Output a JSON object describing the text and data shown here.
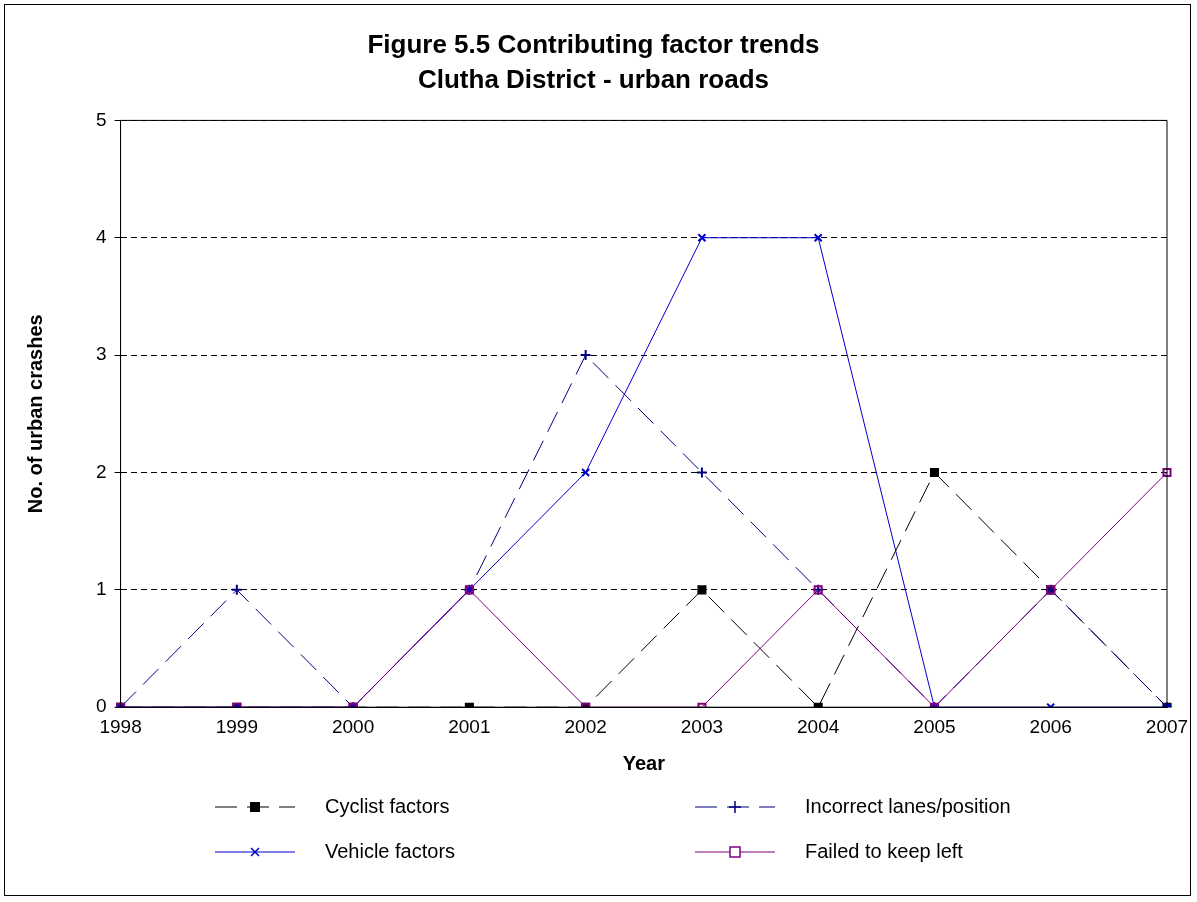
{
  "chart_data": {
    "type": "line",
    "title": "Figure 5.5 Contributing factor trends",
    "subtitle": "Clutha District - urban roads",
    "xlabel": "Year",
    "ylabel": "No. of urban crashes",
    "categories": [
      "1998",
      "1999",
      "2000",
      "2001",
      "2002",
      "2003",
      "2004",
      "2005",
      "2006",
      "2007"
    ],
    "series": [
      {
        "name": "Cyclist factors",
        "color": "#000000",
        "marker": "square",
        "line_style": "dashed",
        "values": [
          0,
          0,
          0,
          0,
          0,
          1,
          0,
          2,
          1,
          0
        ]
      },
      {
        "name": "Incorrect lanes/position",
        "color": "#000080",
        "marker": "cross",
        "line_style": "dashed",
        "values": [
          0,
          1,
          0,
          1,
          3,
          2,
          1,
          0,
          1,
          0
        ]
      },
      {
        "name": "Vehicle factors",
        "color": "#0000cc",
        "marker": "x",
        "line_style": "solid",
        "values": [
          0,
          0,
          0,
          1,
          2,
          4,
          4,
          0,
          0,
          0
        ]
      },
      {
        "name": "Failed to keep left",
        "color": "#800080",
        "marker": "square",
        "line_style": "solid",
        "values": [
          0,
          0,
          0,
          1,
          0,
          0,
          1,
          0,
          1,
          2
        ]
      }
    ],
    "ylim": [
      0,
      5
    ],
    "yticks": [
      0,
      1,
      2,
      3,
      4,
      5
    ],
    "grid": "y",
    "legend": "bottom"
  }
}
